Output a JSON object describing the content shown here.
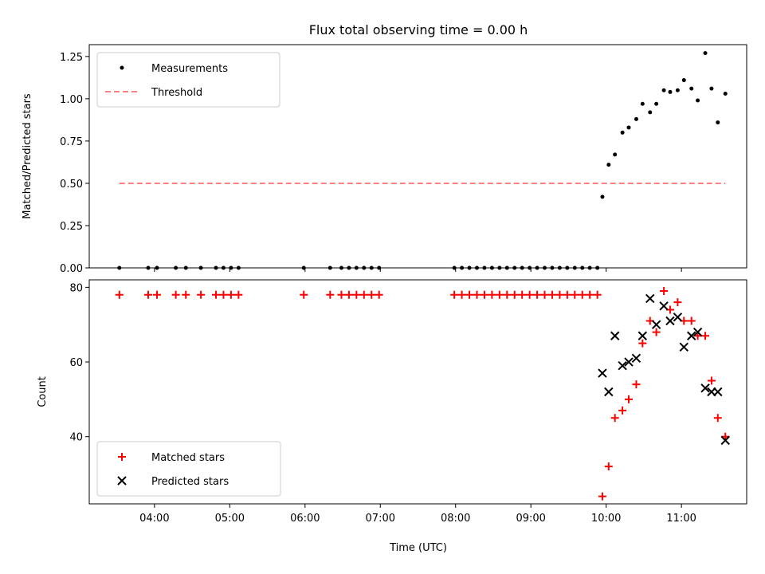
{
  "chart_data": [
    {
      "type": "scatter",
      "title": "Flux total observing time = 0.00 h",
      "ylabel": "Matched/Predicted stars",
      "xlabel": "",
      "ylim": [
        0,
        1.32
      ],
      "yticks": [
        "0.00",
        "0.25",
        "0.50",
        "0.75",
        "1.00",
        "1.25"
      ],
      "ytick_values": [
        0,
        0.25,
        0.5,
        0.75,
        1.0,
        1.25
      ],
      "grid": false,
      "legend_position": "upper-left",
      "series": [
        {
          "name": "Measurements",
          "marker": "dot",
          "color": "#000000",
          "points": [
            [
              "03:32",
              0
            ],
            [
              "03:55",
              0
            ],
            [
              "04:02",
              0
            ],
            [
              "04:17",
              0
            ],
            [
              "04:25",
              0
            ],
            [
              "04:37",
              0
            ],
            [
              "04:49",
              0
            ],
            [
              "04:55",
              0
            ],
            [
              "05:01",
              0
            ],
            [
              "05:07",
              0
            ],
            [
              "05:59",
              0
            ],
            [
              "06:20",
              0
            ],
            [
              "06:29",
              0
            ],
            [
              "06:35",
              0
            ],
            [
              "06:41",
              0
            ],
            [
              "06:47",
              0
            ],
            [
              "06:53",
              0
            ],
            [
              "06:59",
              0
            ],
            [
              "07:59",
              0
            ],
            [
              "08:05",
              0
            ],
            [
              "08:11",
              0
            ],
            [
              "08:17",
              0
            ],
            [
              "08:23",
              0
            ],
            [
              "08:29",
              0
            ],
            [
              "08:35",
              0
            ],
            [
              "08:41",
              0
            ],
            [
              "08:47",
              0
            ],
            [
              "08:53",
              0
            ],
            [
              "08:59",
              0
            ],
            [
              "09:05",
              0
            ],
            [
              "09:11",
              0
            ],
            [
              "09:17",
              0
            ],
            [
              "09:23",
              0
            ],
            [
              "09:29",
              0
            ],
            [
              "09:35",
              0
            ],
            [
              "09:41",
              0
            ],
            [
              "09:47",
              0
            ],
            [
              "09:53",
              0
            ],
            [
              "09:57",
              0.42
            ],
            [
              "10:02",
              0.61
            ],
            [
              "10:07",
              0.67
            ],
            [
              "10:13",
              0.8
            ],
            [
              "10:18",
              0.83
            ],
            [
              "10:24",
              0.88
            ],
            [
              "10:29",
              0.97
            ],
            [
              "10:35",
              0.92
            ],
            [
              "10:40",
              0.97
            ],
            [
              "10:46",
              1.05
            ],
            [
              "10:51",
              1.04
            ],
            [
              "10:57",
              1.05
            ],
            [
              "11:02",
              1.11
            ],
            [
              "11:08",
              1.06
            ],
            [
              "11:13",
              0.99
            ],
            [
              "11:19",
              1.27
            ],
            [
              "11:24",
              1.06
            ],
            [
              "11:29",
              0.86
            ],
            [
              "11:35",
              1.03
            ]
          ]
        },
        {
          "name": "Threshold",
          "marker": "dashed-line",
          "color": "#ff8080",
          "points": [
            [
              "03:32",
              0.5
            ],
            [
              "11:35",
              0.5
            ]
          ]
        }
      ]
    },
    {
      "type": "scatter",
      "title": "",
      "xlabel": "Time (UTC)",
      "ylabel": "Count",
      "ylim": [
        22,
        82
      ],
      "yticks": [
        "40",
        "60",
        "80"
      ],
      "ytick_values": [
        40,
        60,
        80
      ],
      "xlim": [
        "03:08",
        "11:52"
      ],
      "xticks": [
        "04:00",
        "05:00",
        "06:00",
        "07:00",
        "08:00",
        "09:00",
        "10:00",
        "11:00"
      ],
      "grid": false,
      "legend_position": "lower-left",
      "series": [
        {
          "name": "Matched stars",
          "marker": "plus",
          "color": "#ff0000",
          "points": [
            [
              "03:32",
              78
            ],
            [
              "03:55",
              78
            ],
            [
              "04:02",
              78
            ],
            [
              "04:17",
              78
            ],
            [
              "04:25",
              78
            ],
            [
              "04:37",
              78
            ],
            [
              "04:49",
              78
            ],
            [
              "04:55",
              78
            ],
            [
              "05:01",
              78
            ],
            [
              "05:07",
              78
            ],
            [
              "05:59",
              78
            ],
            [
              "06:20",
              78
            ],
            [
              "06:29",
              78
            ],
            [
              "06:35",
              78
            ],
            [
              "06:41",
              78
            ],
            [
              "06:47",
              78
            ],
            [
              "06:53",
              78
            ],
            [
              "06:59",
              78
            ],
            [
              "07:59",
              78
            ],
            [
              "08:05",
              78
            ],
            [
              "08:11",
              78
            ],
            [
              "08:17",
              78
            ],
            [
              "08:23",
              78
            ],
            [
              "08:29",
              78
            ],
            [
              "08:35",
              78
            ],
            [
              "08:41",
              78
            ],
            [
              "08:47",
              78
            ],
            [
              "08:53",
              78
            ],
            [
              "08:59",
              78
            ],
            [
              "09:05",
              78
            ],
            [
              "09:11",
              78
            ],
            [
              "09:17",
              78
            ],
            [
              "09:23",
              78
            ],
            [
              "09:29",
              78
            ],
            [
              "09:35",
              78
            ],
            [
              "09:41",
              78
            ],
            [
              "09:47",
              78
            ],
            [
              "09:53",
              78
            ],
            [
              "09:57",
              24
            ],
            [
              "10:02",
              32
            ],
            [
              "10:07",
              45
            ],
            [
              "10:13",
              47
            ],
            [
              "10:18",
              50
            ],
            [
              "10:24",
              54
            ],
            [
              "10:29",
              65
            ],
            [
              "10:35",
              71
            ],
            [
              "10:40",
              68
            ],
            [
              "10:46",
              79
            ],
            [
              "10:51",
              74
            ],
            [
              "10:57",
              76
            ],
            [
              "11:02",
              71
            ],
            [
              "11:08",
              71
            ],
            [
              "11:13",
              67
            ],
            [
              "11:19",
              67
            ],
            [
              "11:24",
              55
            ],
            [
              "11:29",
              45
            ],
            [
              "11:35",
              40
            ]
          ]
        },
        {
          "name": "Predicted stars",
          "marker": "x",
          "color": "#000000",
          "points": [
            [
              "09:57",
              57
            ],
            [
              "10:02",
              52
            ],
            [
              "10:07",
              67
            ],
            [
              "10:13",
              59
            ],
            [
              "10:18",
              60
            ],
            [
              "10:24",
              61
            ],
            [
              "10:29",
              67
            ],
            [
              "10:35",
              77
            ],
            [
              "10:40",
              70
            ],
            [
              "10:46",
              75
            ],
            [
              "10:51",
              71
            ],
            [
              "10:57",
              72
            ],
            [
              "11:02",
              64
            ],
            [
              "11:08",
              67
            ],
            [
              "11:13",
              68
            ],
            [
              "11:19",
              53
            ],
            [
              "11:24",
              52
            ],
            [
              "11:29",
              52
            ],
            [
              "11:35",
              39
            ]
          ]
        }
      ]
    }
  ]
}
